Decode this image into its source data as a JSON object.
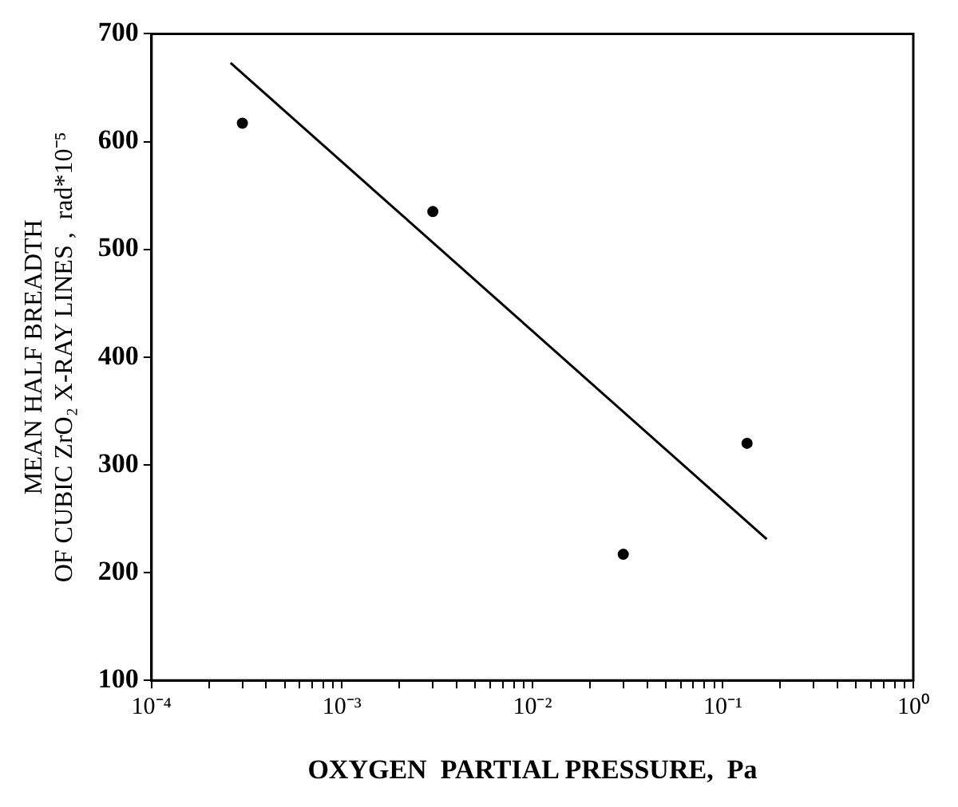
{
  "chart_data": {
    "type": "scatter",
    "xlabel": "OXYGEN  PARTIAL PRESSURE,  Pa",
    "ylabel": "MEAN HALF BREADTH\nOF CUBIC ZrO₂ X-RAY LINES ,  rad*10⁻⁵",
    "log": "x",
    "xlim": [
      0.0001,
      1
    ],
    "ylim": [
      100,
      700
    ],
    "xticks": [
      {
        "value": 0.0001,
        "label": "10⁻⁴"
      },
      {
        "value": 0.0002,
        "label": null
      },
      {
        "value": 0.0003,
        "label": null
      },
      {
        "value": 0.0004,
        "label": null
      },
      {
        "value": 0.0005,
        "label": null
      },
      {
        "value": 0.0006,
        "label": null
      },
      {
        "value": 0.0007,
        "label": null
      },
      {
        "value": 0.0008,
        "label": null
      },
      {
        "value": 0.0009,
        "label": null
      },
      {
        "value": 0.001,
        "label": "10⁻³"
      },
      {
        "value": 0.002,
        "label": null
      },
      {
        "value": 0.003,
        "label": null
      },
      {
        "value": 0.004,
        "label": null
      },
      {
        "value": 0.005,
        "label": null
      },
      {
        "value": 0.006,
        "label": null
      },
      {
        "value": 0.007,
        "label": null
      },
      {
        "value": 0.008,
        "label": null
      },
      {
        "value": 0.009,
        "label": null
      },
      {
        "value": 0.01,
        "label": "10⁻²"
      },
      {
        "value": 0.02,
        "label": null
      },
      {
        "value": 0.03,
        "label": null
      },
      {
        "value": 0.04,
        "label": null
      },
      {
        "value": 0.05,
        "label": null
      },
      {
        "value": 0.06,
        "label": null
      },
      {
        "value": 0.07,
        "label": null
      },
      {
        "value": 0.08,
        "label": null
      },
      {
        "value": 0.09,
        "label": null
      },
      {
        "value": 0.1,
        "label": "10⁻¹"
      },
      {
        "value": 0.2,
        "label": null
      },
      {
        "value": 0.3,
        "label": null
      },
      {
        "value": 0.4,
        "label": null
      },
      {
        "value": 0.5,
        "label": null
      },
      {
        "value": 0.6,
        "label": null
      },
      {
        "value": 0.7,
        "label": null
      },
      {
        "value": 0.8,
        "label": null
      },
      {
        "value": 0.9,
        "label": null
      },
      {
        "value": 1,
        "label": "10⁰"
      }
    ],
    "yticks": [
      100,
      200,
      300,
      400,
      500,
      600,
      700
    ],
    "grid": false,
    "legend": false,
    "series": [
      {
        "type": "scatter",
        "color": "#000000",
        "marker": "circle",
        "x": [
          0.0003,
          0.003,
          0.03,
          0.134
        ],
        "values": [
          617,
          535,
          217,
          320
        ]
      },
      {
        "type": "line",
        "color": "#000000",
        "marker": "none",
        "line_style": "solid",
        "x": [
          0.00026,
          0.17
        ],
        "values": [
          673,
          231
        ]
      }
    ]
  }
}
